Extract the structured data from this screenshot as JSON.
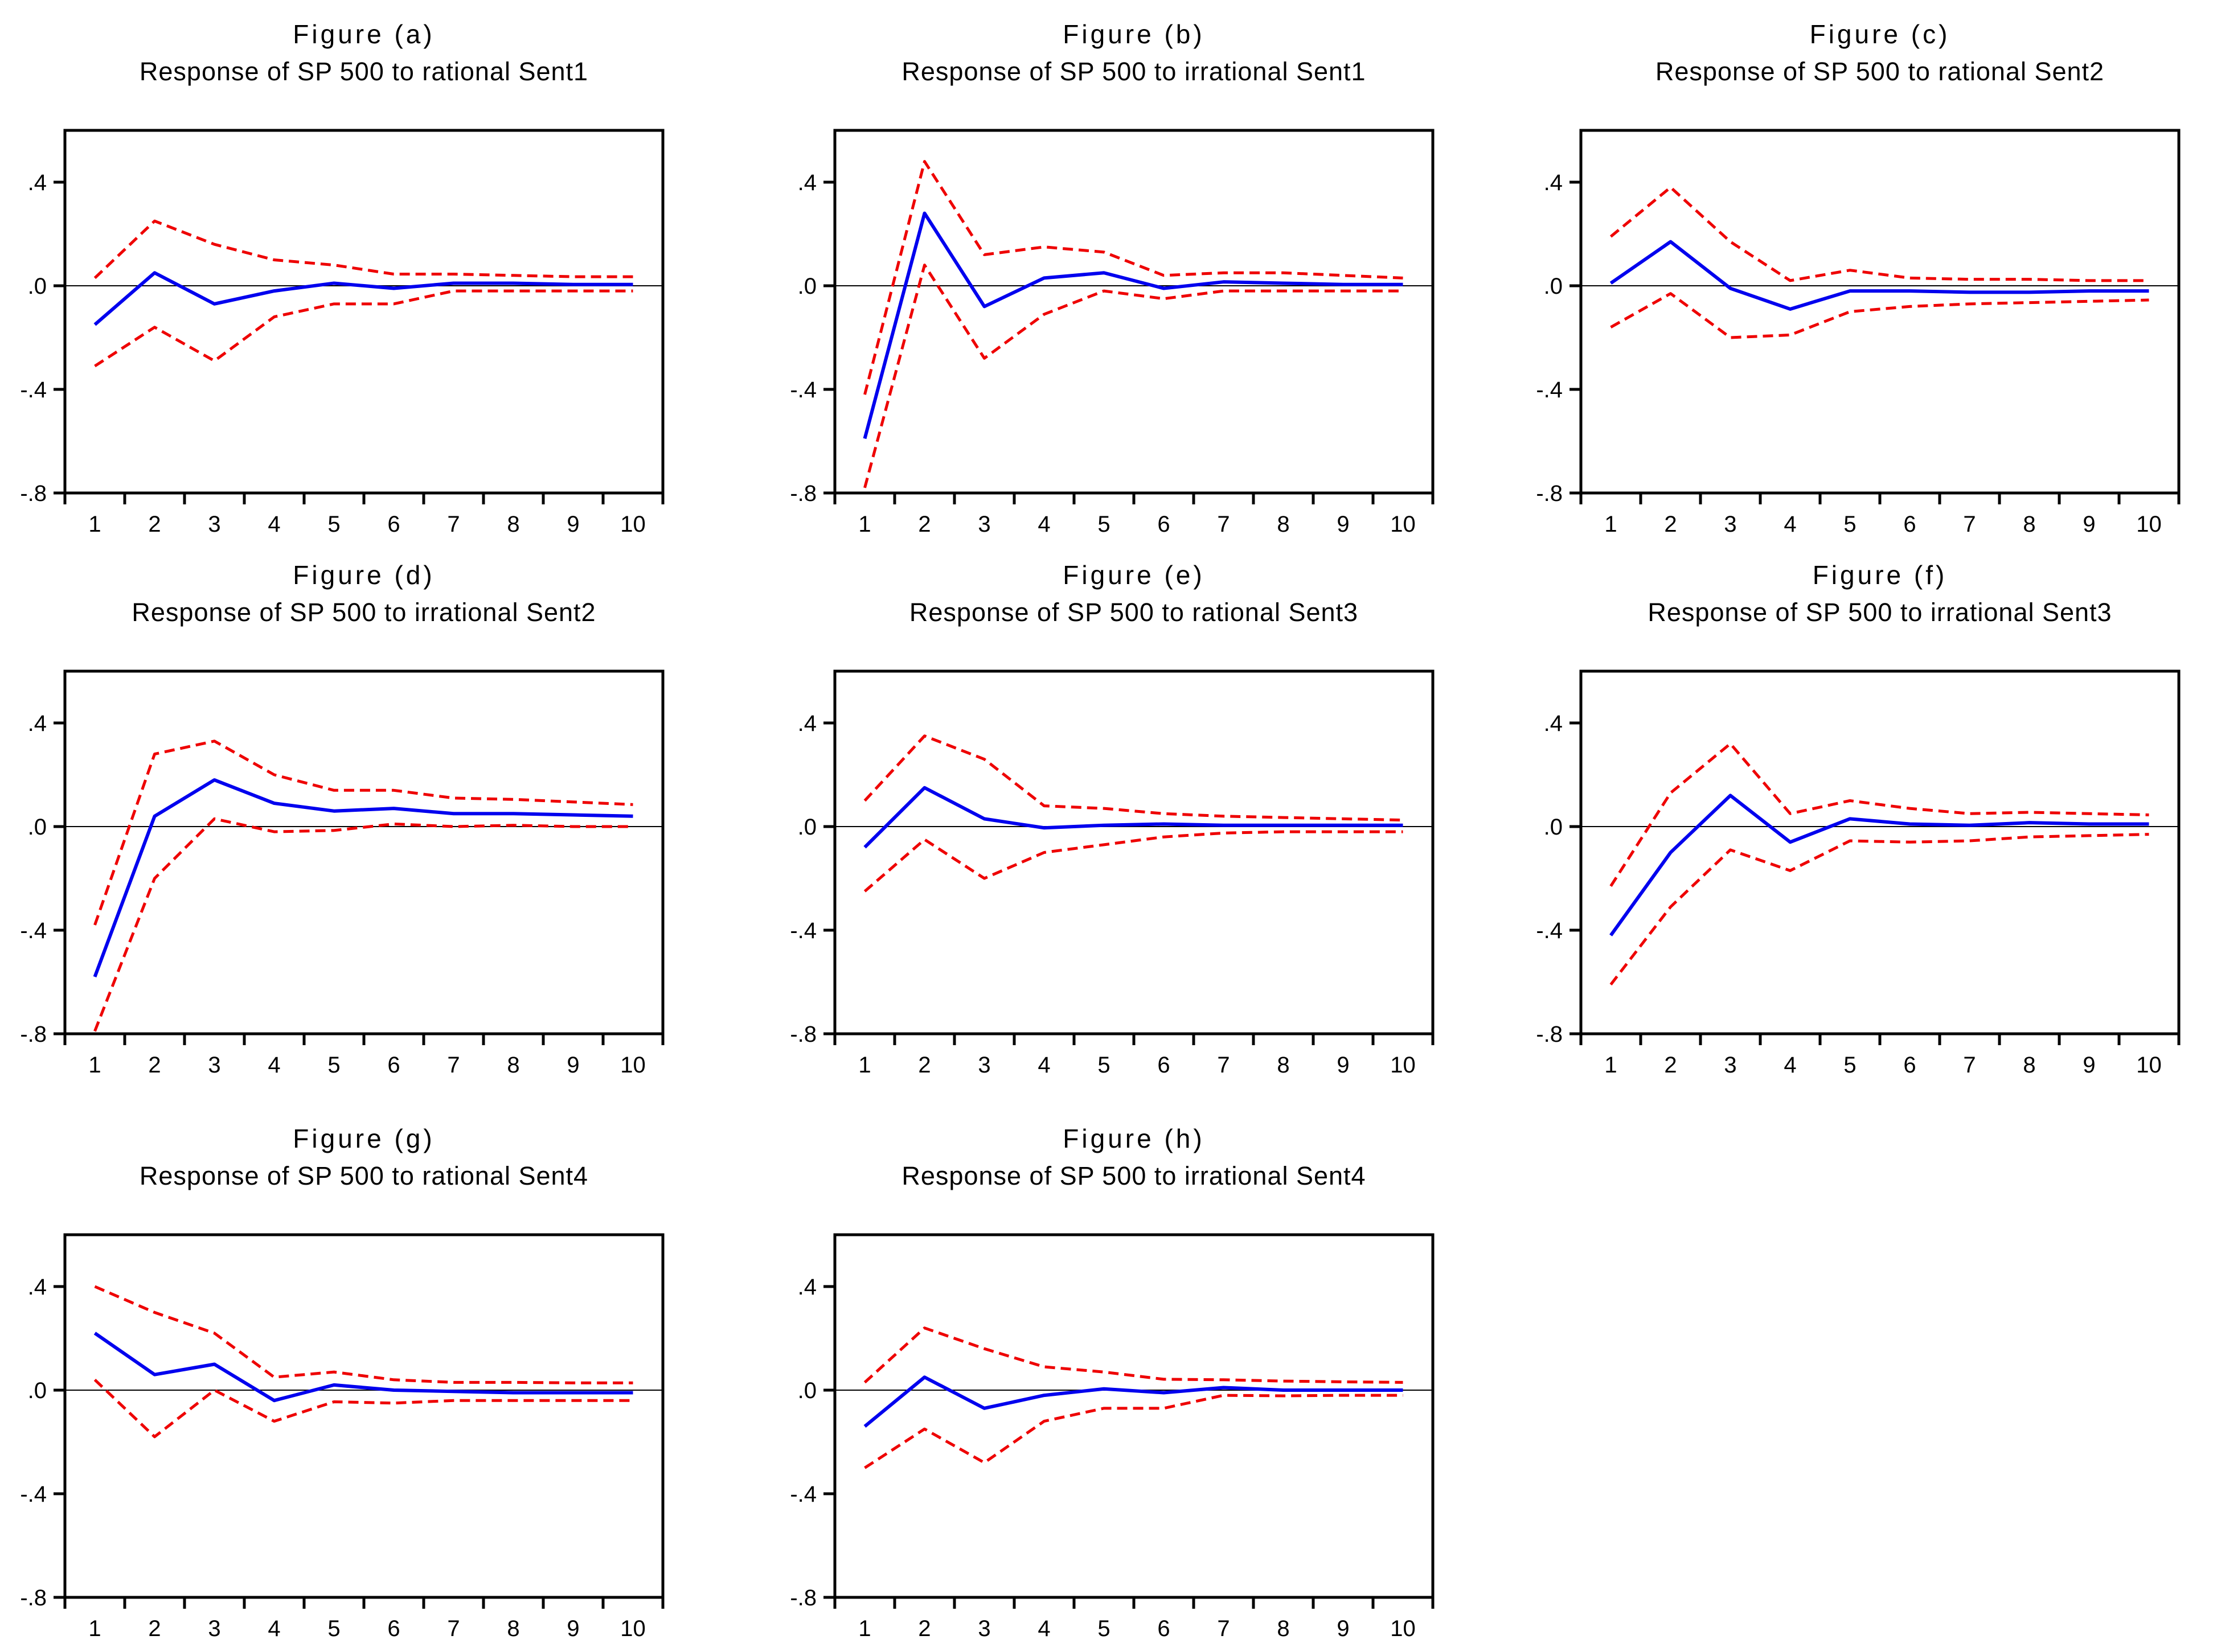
{
  "page": {
    "background": "#ffffff"
  },
  "colors": {
    "response_line": "#0000EE",
    "band_line": "#EE0000",
    "axis": "#000000",
    "zero_line": "#000000"
  },
  "chart_data": [
    {
      "id": "a",
      "type": "line",
      "title": "Figure (a)",
      "subtitle": "Response of SP 500 to rational Sent1",
      "x": [
        1,
        2,
        3,
        4,
        5,
        6,
        7,
        8,
        9,
        10
      ],
      "xticklabels": [
        "1",
        "2",
        "3",
        "4",
        "5",
        "6",
        "7",
        "8",
        "9",
        "10"
      ],
      "ylim": [
        -0.8,
        0.6
      ],
      "yticks": [
        0.4,
        0.0,
        -0.4,
        -0.8
      ],
      "yticklabels": [
        ".4",
        ".0",
        "-.4",
        "-.8"
      ],
      "grid": false,
      "series": [
        {
          "name": "upper_band",
          "style": "dashed",
          "color_key": "band_line",
          "values": [
            0.03,
            0.25,
            0.16,
            0.1,
            0.08,
            0.045,
            0.045,
            0.04,
            0.035,
            0.035
          ]
        },
        {
          "name": "lower_band",
          "style": "dashed",
          "color_key": "band_line",
          "values": [
            -0.31,
            -0.16,
            -0.29,
            -0.12,
            -0.07,
            -0.07,
            -0.02,
            -0.02,
            -0.02,
            -0.02
          ]
        },
        {
          "name": "response",
          "style": "solid",
          "color_key": "response_line",
          "values": [
            -0.15,
            0.05,
            -0.07,
            -0.02,
            0.01,
            -0.01,
            0.01,
            0.01,
            0.005,
            0.005
          ]
        }
      ]
    },
    {
      "id": "b",
      "type": "line",
      "title": "Figure (b)",
      "subtitle": "Response of SP 500 to irrational Sent1",
      "x": [
        1,
        2,
        3,
        4,
        5,
        6,
        7,
        8,
        9,
        10
      ],
      "xticklabels": [
        "1",
        "2",
        "3",
        "4",
        "5",
        "6",
        "7",
        "8",
        "9",
        "10"
      ],
      "ylim": [
        -0.8,
        0.6
      ],
      "yticks": [
        0.4,
        0.0,
        -0.4,
        -0.8
      ],
      "yticklabels": [
        ".4",
        ".0",
        "-.4",
        "-.8"
      ],
      "grid": false,
      "series": [
        {
          "name": "upper_band",
          "style": "dashed",
          "color_key": "band_line",
          "values": [
            -0.42,
            0.48,
            0.12,
            0.15,
            0.13,
            0.04,
            0.05,
            0.05,
            0.04,
            0.03
          ]
        },
        {
          "name": "lower_band",
          "style": "dashed",
          "color_key": "band_line",
          "values": [
            -0.78,
            0.08,
            -0.28,
            -0.11,
            -0.02,
            -0.05,
            -0.02,
            -0.02,
            -0.02,
            -0.02
          ]
        },
        {
          "name": "response",
          "style": "solid",
          "color_key": "response_line",
          "values": [
            -0.59,
            0.28,
            -0.08,
            0.03,
            0.05,
            -0.01,
            0.015,
            0.01,
            0.005,
            0.005
          ]
        }
      ]
    },
    {
      "id": "c",
      "type": "line",
      "title": "Figure (c)",
      "subtitle": "Response of SP 500 to rational Sent2",
      "x": [
        1,
        2,
        3,
        4,
        5,
        6,
        7,
        8,
        9,
        10
      ],
      "xticklabels": [
        "1",
        "2",
        "3",
        "4",
        "5",
        "6",
        "7",
        "8",
        "9",
        "10"
      ],
      "ylim": [
        -0.8,
        0.6
      ],
      "yticks": [
        0.4,
        0.0,
        -0.4,
        -0.8
      ],
      "yticklabels": [
        ".4",
        ".0",
        "-.4",
        "-.8"
      ],
      "grid": false,
      "series": [
        {
          "name": "upper_band",
          "style": "dashed",
          "color_key": "band_line",
          "values": [
            0.19,
            0.38,
            0.17,
            0.02,
            0.06,
            0.03,
            0.025,
            0.025,
            0.02,
            0.02
          ]
        },
        {
          "name": "lower_band",
          "style": "dashed",
          "color_key": "band_line",
          "values": [
            -0.16,
            -0.03,
            -0.2,
            -0.19,
            -0.1,
            -0.08,
            -0.07,
            -0.065,
            -0.06,
            -0.055
          ]
        },
        {
          "name": "response",
          "style": "solid",
          "color_key": "response_line",
          "values": [
            0.01,
            0.17,
            -0.01,
            -0.09,
            -0.02,
            -0.02,
            -0.025,
            -0.025,
            -0.02,
            -0.02
          ]
        }
      ]
    },
    {
      "id": "d",
      "type": "line",
      "title": "Figure (d)",
      "subtitle": "Response of SP 500 to irrational Sent2",
      "x": [
        1,
        2,
        3,
        4,
        5,
        6,
        7,
        8,
        9,
        10
      ],
      "xticklabels": [
        "1",
        "2",
        "3",
        "4",
        "5",
        "6",
        "7",
        "8",
        "9",
        "10"
      ],
      "ylim": [
        -0.8,
        0.6
      ],
      "yticks": [
        0.4,
        0.0,
        -0.4,
        -0.8
      ],
      "yticklabels": [
        ".4",
        ".0",
        "-.4",
        "-.8"
      ],
      "grid": false,
      "series": [
        {
          "name": "upper_band",
          "style": "dashed",
          "color_key": "band_line",
          "values": [
            -0.38,
            0.28,
            0.33,
            0.2,
            0.14,
            0.14,
            0.11,
            0.105,
            0.095,
            0.085
          ]
        },
        {
          "name": "lower_band",
          "style": "dashed",
          "color_key": "band_line",
          "values": [
            -0.79,
            -0.2,
            0.03,
            -0.02,
            -0.015,
            0.01,
            0.0,
            0.005,
            0.0,
            0.0
          ]
        },
        {
          "name": "response",
          "style": "solid",
          "color_key": "response_line",
          "values": [
            -0.58,
            0.04,
            0.18,
            0.09,
            0.06,
            0.07,
            0.05,
            0.05,
            0.045,
            0.04
          ]
        }
      ]
    },
    {
      "id": "e",
      "type": "line",
      "title": "Figure (e)",
      "subtitle": "Response of SP 500 to rational Sent3",
      "x": [
        1,
        2,
        3,
        4,
        5,
        6,
        7,
        8,
        9,
        10
      ],
      "xticklabels": [
        "1",
        "2",
        "3",
        "4",
        "5",
        "6",
        "7",
        "8",
        "9",
        "10"
      ],
      "ylim": [
        -0.8,
        0.6
      ],
      "yticks": [
        0.4,
        0.0,
        -0.4,
        -0.8
      ],
      "yticklabels": [
        ".4",
        ".0",
        "-.4",
        "-.8"
      ],
      "grid": false,
      "series": [
        {
          "name": "upper_band",
          "style": "dashed",
          "color_key": "band_line",
          "values": [
            0.1,
            0.35,
            0.26,
            0.08,
            0.07,
            0.05,
            0.04,
            0.035,
            0.03,
            0.025
          ]
        },
        {
          "name": "lower_band",
          "style": "dashed",
          "color_key": "band_line",
          "values": [
            -0.25,
            -0.05,
            -0.2,
            -0.1,
            -0.07,
            -0.04,
            -0.025,
            -0.02,
            -0.02,
            -0.02
          ]
        },
        {
          "name": "response",
          "style": "solid",
          "color_key": "response_line",
          "values": [
            -0.08,
            0.15,
            0.03,
            -0.005,
            0.005,
            0.01,
            0.005,
            0.005,
            0.005,
            0.005
          ]
        }
      ]
    },
    {
      "id": "f",
      "type": "line",
      "title": "Figure (f)",
      "subtitle": "Response of SP 500 to irrational Sent3",
      "x": [
        1,
        2,
        3,
        4,
        5,
        6,
        7,
        8,
        9,
        10
      ],
      "xticklabels": [
        "1",
        "2",
        "3",
        "4",
        "5",
        "6",
        "7",
        "8",
        "9",
        "10"
      ],
      "ylim": [
        -0.8,
        0.6
      ],
      "yticks": [
        0.4,
        0.0,
        -0.4,
        -0.8
      ],
      "yticklabels": [
        ".4",
        ".0",
        "-.4",
        "-.8"
      ],
      "grid": false,
      "series": [
        {
          "name": "upper_band",
          "style": "dashed",
          "color_key": "band_line",
          "values": [
            -0.23,
            0.13,
            0.32,
            0.05,
            0.1,
            0.07,
            0.05,
            0.055,
            0.05,
            0.045
          ]
        },
        {
          "name": "lower_band",
          "style": "dashed",
          "color_key": "band_line",
          "values": [
            -0.61,
            -0.31,
            -0.09,
            -0.17,
            -0.055,
            -0.06,
            -0.055,
            -0.04,
            -0.035,
            -0.03
          ]
        },
        {
          "name": "response",
          "style": "solid",
          "color_key": "response_line",
          "values": [
            -0.42,
            -0.1,
            0.12,
            -0.06,
            0.03,
            0.01,
            0.005,
            0.015,
            0.01,
            0.01
          ]
        }
      ]
    },
    {
      "id": "g",
      "type": "line",
      "title": "Figure (g)",
      "subtitle": "Response of SP 500 to rational Sent4",
      "x": [
        1,
        2,
        3,
        4,
        5,
        6,
        7,
        8,
        9,
        10
      ],
      "xticklabels": [
        "1",
        "2",
        "3",
        "4",
        "5",
        "6",
        "7",
        "8",
        "9",
        "10"
      ],
      "ylim": [
        -0.8,
        0.6
      ],
      "yticks": [
        0.4,
        0.0,
        -0.4,
        -0.8
      ],
      "yticklabels": [
        ".4",
        ".0",
        "-.4",
        "-.8"
      ],
      "grid": false,
      "series": [
        {
          "name": "upper_band",
          "style": "dashed",
          "color_key": "band_line",
          "values": [
            0.4,
            0.3,
            0.22,
            0.05,
            0.07,
            0.04,
            0.03,
            0.03,
            0.028,
            0.028
          ]
        },
        {
          "name": "lower_band",
          "style": "dashed",
          "color_key": "band_line",
          "values": [
            0.04,
            -0.18,
            0.0,
            -0.12,
            -0.045,
            -0.05,
            -0.04,
            -0.04,
            -0.04,
            -0.04
          ]
        },
        {
          "name": "response",
          "style": "solid",
          "color_key": "response_line",
          "values": [
            0.22,
            0.06,
            0.1,
            -0.04,
            0.02,
            0.0,
            -0.005,
            -0.01,
            -0.01,
            -0.01
          ]
        }
      ]
    },
    {
      "id": "h",
      "type": "line",
      "title": "Figure (h)",
      "subtitle": "Response of SP 500 to irrational Sent4",
      "x": [
        1,
        2,
        3,
        4,
        5,
        6,
        7,
        8,
        9,
        10
      ],
      "xticklabels": [
        "1",
        "2",
        "3",
        "4",
        "5",
        "6",
        "7",
        "8",
        "9",
        "10"
      ],
      "ylim": [
        -0.8,
        0.6
      ],
      "yticks": [
        0.4,
        0.0,
        -0.4,
        -0.8
      ],
      "yticklabels": [
        ".4",
        ".0",
        "-.4",
        "-.8"
      ],
      "grid": false,
      "series": [
        {
          "name": "upper_band",
          "style": "dashed",
          "color_key": "band_line",
          "values": [
            0.03,
            0.24,
            0.16,
            0.09,
            0.07,
            0.042,
            0.04,
            0.035,
            0.032,
            0.03
          ]
        },
        {
          "name": "lower_band",
          "style": "dashed",
          "color_key": "band_line",
          "values": [
            -0.3,
            -0.15,
            -0.28,
            -0.12,
            -0.07,
            -0.07,
            -0.02,
            -0.022,
            -0.02,
            -0.02
          ]
        },
        {
          "name": "response",
          "style": "solid",
          "color_key": "response_line",
          "values": [
            -0.14,
            0.05,
            -0.07,
            -0.02,
            0.005,
            -0.01,
            0.01,
            0.0,
            0.0,
            0.0
          ]
        }
      ]
    }
  ]
}
